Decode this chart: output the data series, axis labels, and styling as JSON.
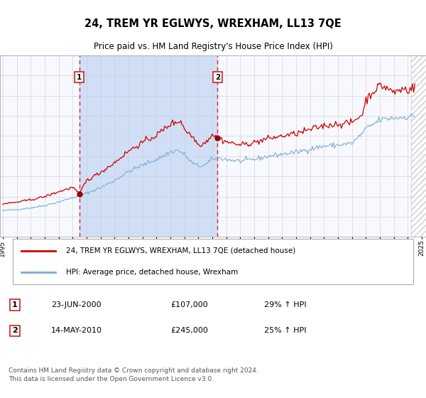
{
  "title": "24, TREM YR EGLWYS, WREXHAM, LL13 7QE",
  "subtitle": "Price paid vs. HM Land Registry's House Price Index (HPI)",
  "background_color": "#ffffff",
  "plot_background": "#f0f4ff",
  "fill_between_color": "#ccddf5",
  "grid_color": "#cccccc",
  "hpi_color": "#7aadd4",
  "property_color": "#cc0000",
  "sale1": {
    "date": "23-JUN-2000",
    "price": 107000,
    "label": "1",
    "year": 2000.47,
    "hpi_pct": 29
  },
  "sale2": {
    "date": "14-MAY-2010",
    "price": 245000,
    "label": "2",
    "year": 2010.37,
    "hpi_pct": 25
  },
  "legend_property": "24, TREM YR EGLWYS, WREXHAM, LL13 7QE (detached house)",
  "legend_hpi": "HPI: Average price, detached house, Wrexham",
  "footer": "Contains HM Land Registry data © Crown copyright and database right 2024.\nThis data is licensed under the Open Government Licence v3.0.",
  "ylim": [
    0,
    450000
  ],
  "yticks": [
    0,
    50000,
    100000,
    150000,
    200000,
    250000,
    300000,
    350000,
    400000,
    450000
  ],
  "xmin": 1995,
  "xmax": 2025
}
